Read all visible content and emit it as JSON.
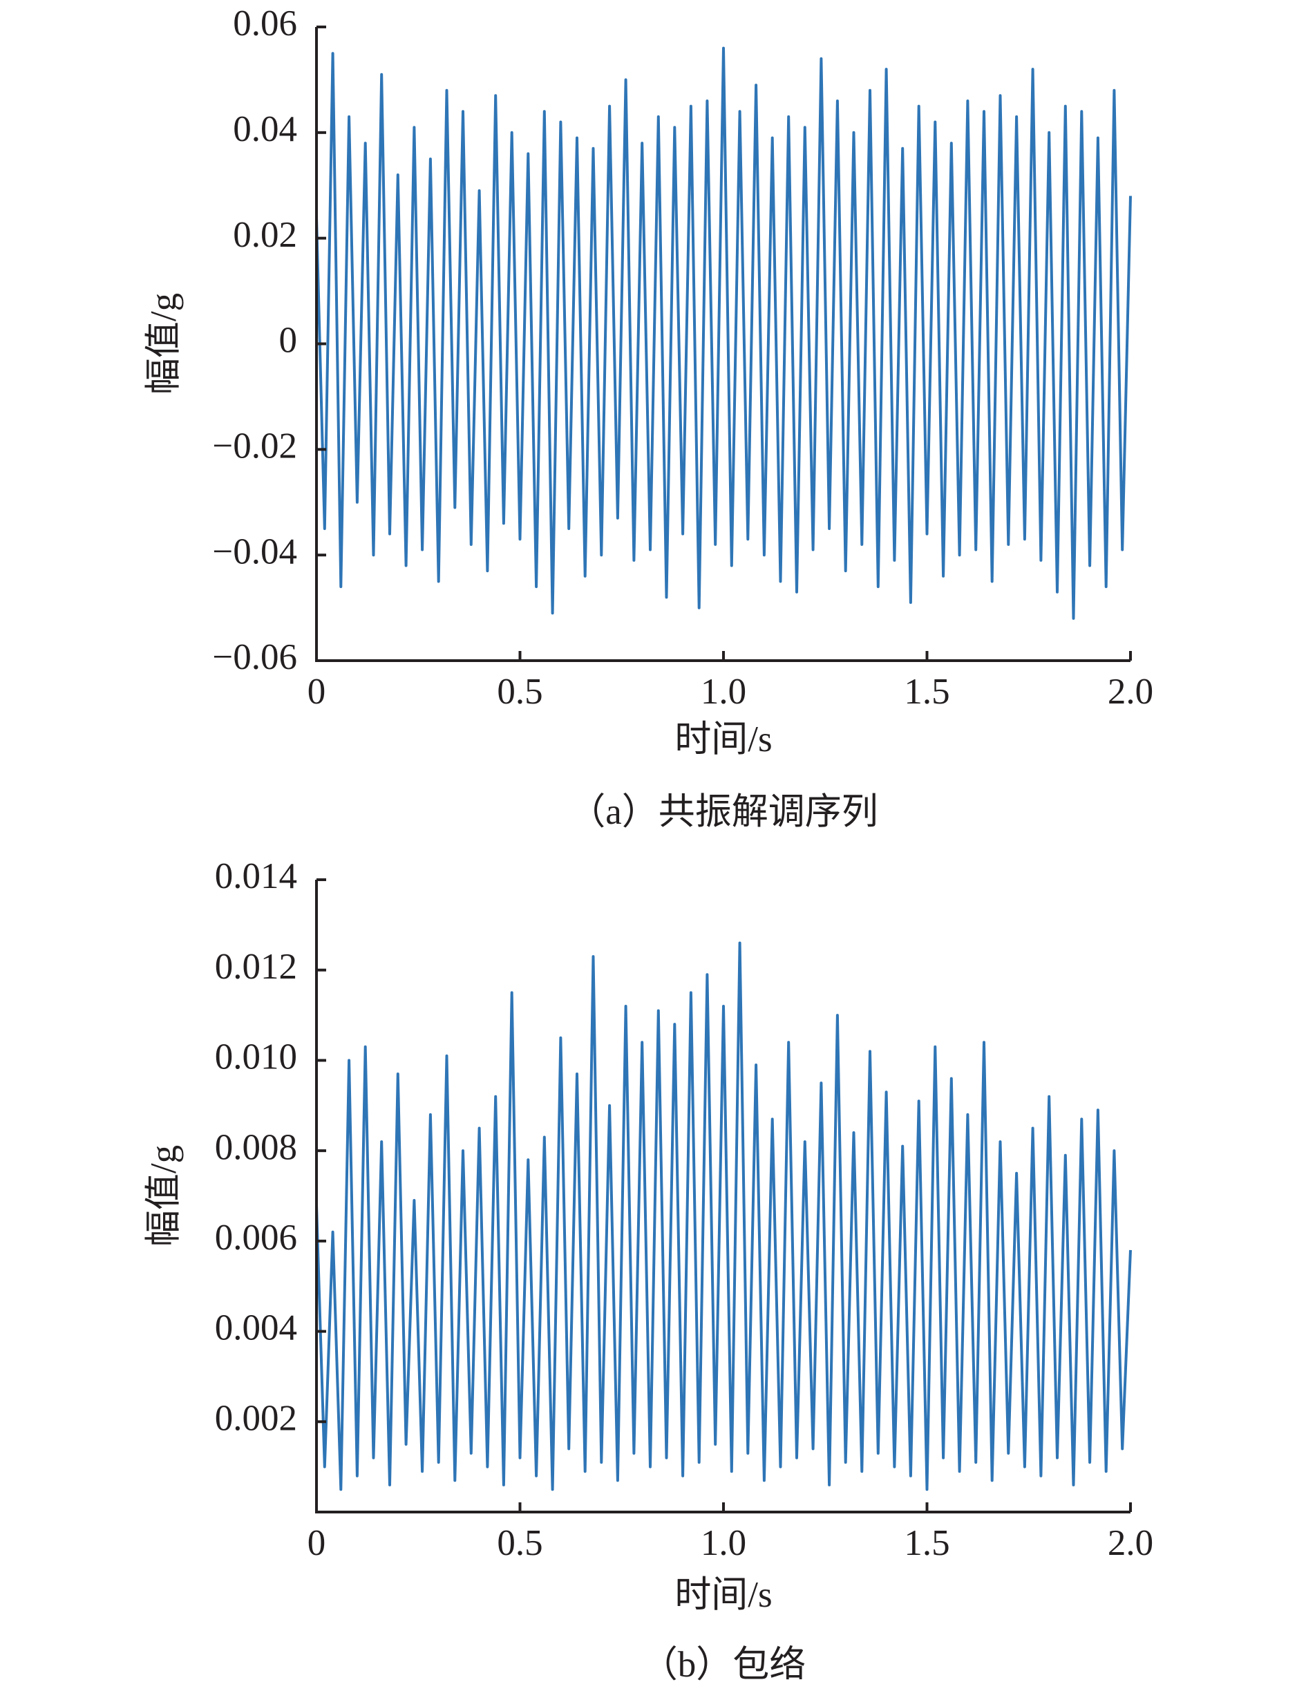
{
  "chart_data": [
    {
      "type": "line",
      "caption": "（a）共振解调序列",
      "xlabel": "时间/s",
      "ylabel": "幅值/g",
      "color": "#2e75b6",
      "xlim": [
        0,
        2.0
      ],
      "xticks": [
        0,
        0.5,
        {
          "value": 1.0,
          "label": "1.0"
        },
        1.5,
        {
          "value": 2.0,
          "label": "2.0"
        }
      ],
      "ylim": [
        -0.06,
        0.06
      ],
      "yticks": [
        {
          "value": -0.06,
          "label": "−0.06"
        },
        {
          "value": -0.04,
          "label": "−0.04"
        },
        {
          "value": -0.02,
          "label": "−0.02"
        },
        0,
        0.02,
        0.04,
        0.06
      ],
      "x": [
        0,
        0.02,
        0.04,
        0.06,
        0.08,
        0.1,
        0.12,
        0.14,
        0.16,
        0.18,
        0.2,
        0.22,
        0.24,
        0.26,
        0.28,
        0.3,
        0.32,
        0.34,
        0.36,
        0.38,
        0.4,
        0.42,
        0.44,
        0.46,
        0.48,
        0.5,
        0.52,
        0.54,
        0.56,
        0.58,
        0.6,
        0.62,
        0.64,
        0.66,
        0.68,
        0.7,
        0.72,
        0.74,
        0.76,
        0.78,
        0.8,
        0.82,
        0.84,
        0.86,
        0.88,
        0.9,
        0.92,
        0.94,
        0.96,
        0.98,
        1.0,
        1.02,
        1.04,
        1.06,
        1.08,
        1.1,
        1.12,
        1.14,
        1.16,
        1.18,
        1.2,
        1.22,
        1.24,
        1.26,
        1.28,
        1.3,
        1.32,
        1.34,
        1.36,
        1.38,
        1.4,
        1.42,
        1.44,
        1.46,
        1.48,
        1.5,
        1.52,
        1.54,
        1.56,
        1.58,
        1.6,
        1.62,
        1.64,
        1.66,
        1.68,
        1.7,
        1.72,
        1.74,
        1.76,
        1.78,
        1.8,
        1.82,
        1.84,
        1.86,
        1.88,
        1.9,
        1.92,
        1.94,
        1.96,
        1.98,
        2.0
      ],
      "values": [
        0.024,
        -0.035,
        0.055,
        -0.046,
        0.043,
        -0.03,
        0.038,
        -0.04,
        0.051,
        -0.036,
        0.032,
        -0.042,
        0.041,
        -0.039,
        0.035,
        -0.045,
        0.048,
        -0.031,
        0.044,
        -0.038,
        0.029,
        -0.043,
        0.047,
        -0.034,
        0.04,
        -0.037,
        0.036,
        -0.046,
        0.044,
        -0.051,
        0.042,
        -0.035,
        0.039,
        -0.044,
        0.037,
        -0.04,
        0.045,
        -0.033,
        0.05,
        -0.041,
        0.038,
        -0.039,
        0.043,
        -0.048,
        0.041,
        -0.036,
        0.045,
        -0.05,
        0.046,
        -0.038,
        0.056,
        -0.042,
        0.044,
        -0.037,
        0.049,
        -0.04,
        0.039,
        -0.045,
        0.043,
        -0.047,
        0.041,
        -0.039,
        0.054,
        -0.035,
        0.046,
        -0.043,
        0.04,
        -0.038,
        0.048,
        -0.046,
        0.052,
        -0.041,
        0.037,
        -0.049,
        0.045,
        -0.036,
        0.042,
        -0.044,
        0.038,
        -0.04,
        0.046,
        -0.039,
        0.044,
        -0.045,
        0.047,
        -0.038,
        0.043,
        -0.037,
        0.052,
        -0.041,
        0.04,
        -0.047,
        0.045,
        -0.052,
        0.044,
        -0.042,
        0.039,
        -0.046,
        0.048,
        -0.039,
        0.028
      ]
    },
    {
      "type": "line",
      "caption": "（b）包络",
      "xlabel": "时间/s",
      "ylabel": "幅值/g",
      "color": "#2e75b6",
      "xlim": [
        0,
        2.0
      ],
      "xticks": [
        0,
        0.5,
        {
          "value": 1.0,
          "label": "1.0"
        },
        1.5,
        {
          "value": 2.0,
          "label": "2.0"
        }
      ],
      "ylim": [
        0,
        0.014
      ],
      "yticks": [
        0.002,
        0.004,
        0.006,
        0.008,
        {
          "value": 0.01,
          "label": "0.010"
        },
        0.012,
        0.014
      ],
      "x": [
        0,
        0.02,
        0.04,
        0.06,
        0.08,
        0.1,
        0.12,
        0.14,
        0.16,
        0.18,
        0.2,
        0.22,
        0.24,
        0.26,
        0.28,
        0.3,
        0.32,
        0.34,
        0.36,
        0.38,
        0.4,
        0.42,
        0.44,
        0.46,
        0.48,
        0.5,
        0.52,
        0.54,
        0.56,
        0.58,
        0.6,
        0.62,
        0.64,
        0.66,
        0.68,
        0.7,
        0.72,
        0.74,
        0.76,
        0.78,
        0.8,
        0.82,
        0.84,
        0.86,
        0.88,
        0.9,
        0.92,
        0.94,
        0.96,
        0.98,
        1.0,
        1.02,
        1.04,
        1.06,
        1.08,
        1.1,
        1.12,
        1.14,
        1.16,
        1.18,
        1.2,
        1.22,
        1.24,
        1.26,
        1.28,
        1.3,
        1.32,
        1.34,
        1.36,
        1.38,
        1.4,
        1.42,
        1.44,
        1.46,
        1.48,
        1.5,
        1.52,
        1.54,
        1.56,
        1.58,
        1.6,
        1.62,
        1.64,
        1.66,
        1.68,
        1.7,
        1.72,
        1.74,
        1.76,
        1.78,
        1.8,
        1.82,
        1.84,
        1.86,
        1.88,
        1.9,
        1.92,
        1.94,
        1.96,
        1.98,
        2.0
      ],
      "values": [
        0.0068,
        0.001,
        0.0062,
        0.0005,
        0.01,
        0.0008,
        0.0103,
        0.0012,
        0.0082,
        0.0006,
        0.0097,
        0.0015,
        0.0069,
        0.0009,
        0.0088,
        0.0011,
        0.0101,
        0.0007,
        0.008,
        0.0013,
        0.0085,
        0.001,
        0.0092,
        0.0006,
        0.0115,
        0.0012,
        0.0078,
        0.0008,
        0.0083,
        0.0005,
        0.0105,
        0.0014,
        0.0097,
        0.0009,
        0.0123,
        0.0011,
        0.009,
        0.0007,
        0.0112,
        0.0013,
        0.0104,
        0.001,
        0.0111,
        0.0012,
        0.0108,
        0.0008,
        0.0115,
        0.0011,
        0.0119,
        0.0015,
        0.0112,
        0.0009,
        0.0126,
        0.0013,
        0.0099,
        0.0007,
        0.0087,
        0.001,
        0.0104,
        0.0012,
        0.0082,
        0.0014,
        0.0095,
        0.0006,
        0.011,
        0.0011,
        0.0084,
        0.0009,
        0.0102,
        0.0013,
        0.0093,
        0.001,
        0.0081,
        0.0008,
        0.0091,
        0.0005,
        0.0103,
        0.0012,
        0.0096,
        0.0009,
        0.0088,
        0.0011,
        0.0104,
        0.0007,
        0.0082,
        0.0013,
        0.0075,
        0.001,
        0.0085,
        0.0008,
        0.0092,
        0.0012,
        0.0079,
        0.0006,
        0.0087,
        0.0011,
        0.0089,
        0.0009,
        0.008,
        0.0014,
        0.0058
      ]
    }
  ]
}
